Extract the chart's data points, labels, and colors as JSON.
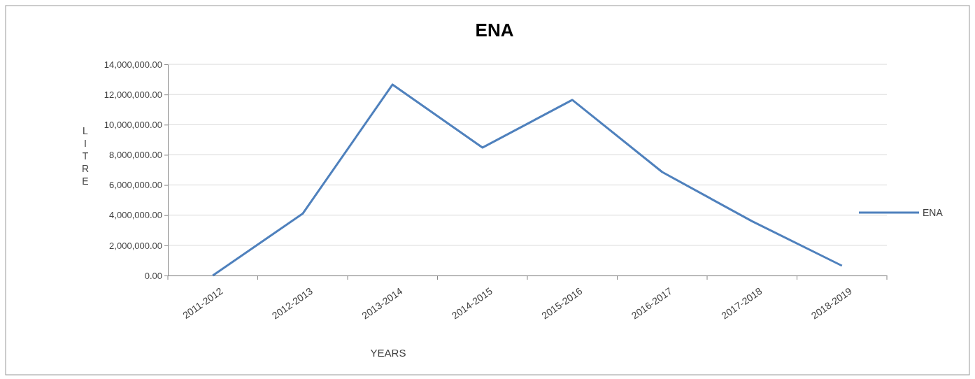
{
  "chart_data": {
    "type": "line",
    "title": "ENA",
    "xlabel": "YEARS",
    "ylabel": "LITRE",
    "categories": [
      "2011-2012",
      "2012-2013",
      "2013-2014",
      "2014-2015",
      "2015-2016",
      "2016-2017",
      "2017-2018",
      "2018-2019"
    ],
    "series": [
      {
        "name": "ENA",
        "color": "#4f81bd",
        "values": [
          0,
          4100000,
          12660000,
          8480000,
          11640000,
          6860000,
          3600000,
          650000
        ]
      }
    ],
    "ylim": [
      0,
      14000000
    ],
    "yticks": [
      {
        "value": 0,
        "label": "0.00"
      },
      {
        "value": 2000000,
        "label": "2,000,000.00"
      },
      {
        "value": 4000000,
        "label": "4,000,000.00"
      },
      {
        "value": 6000000,
        "label": "6,000,000.00"
      },
      {
        "value": 8000000,
        "label": "8,000,000.00"
      },
      {
        "value": 10000000,
        "label": "10,000,000.00"
      },
      {
        "value": 12000000,
        "label": "12,000,000.00"
      },
      {
        "value": 14000000,
        "label": "14,000,000.00"
      }
    ],
    "grid": "y",
    "legend": "right",
    "marker": "none",
    "line_style": "solid"
  }
}
